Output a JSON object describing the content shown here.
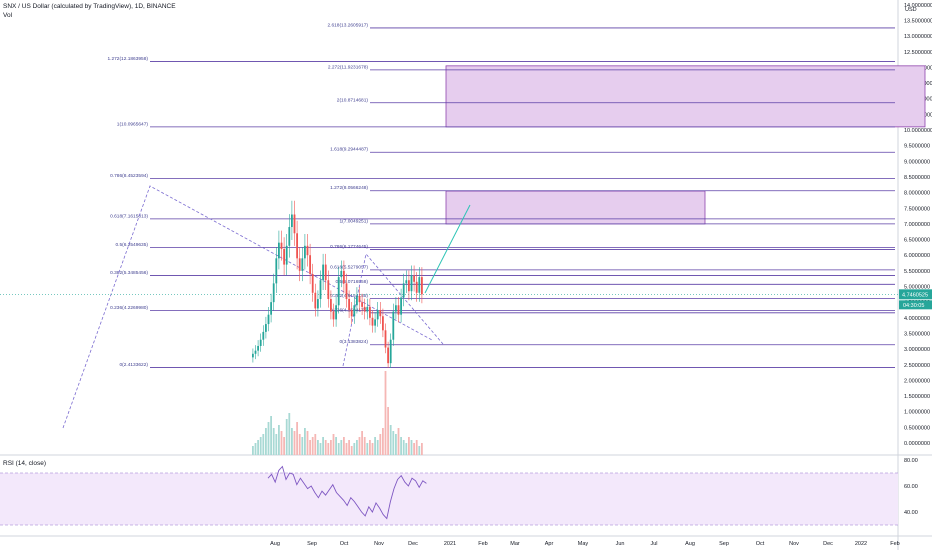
{
  "header": {
    "title": "SNX / US Dollar (calculated by TradingView), 1D, BINANCE",
    "volume_label": "Vol"
  },
  "currency": "USD",
  "rsi": {
    "label": "RSI (14, close)",
    "ticks": [
      "80.00",
      "60.00",
      "40.00"
    ]
  },
  "price_badges": {
    "last_price": "4.7460525",
    "countdown": "04:30:05"
  },
  "chart_data": {
    "type": "candlestick",
    "price_axis_ticks": [
      "14.0000000",
      "13.5000000",
      "13.0000000",
      "12.5000000",
      "12.0000000",
      "11.5000000",
      "11.0000000",
      "10.5000000",
      "10.0000000",
      "9.5000000",
      "9.0000000",
      "8.5000000",
      "8.0000000",
      "7.5000000",
      "7.0000000",
      "6.5000000",
      "6.0000000",
      "5.5000000",
      "5.0000000",
      "4.5000000",
      "4.0000000",
      "3.5000000",
      "3.0000000",
      "2.5000000",
      "2.0000000",
      "1.5000000",
      "1.0000000",
      "0.5000000",
      "0.0000000"
    ],
    "time_axis_ticks": [
      "Aug",
      "Sep",
      "Oct",
      "Nov",
      "Dec",
      "2021",
      "Feb",
      "Mar",
      "Apr",
      "May",
      "Jun",
      "Jul",
      "Aug",
      "Sep",
      "Oct",
      "Nov",
      "Dec",
      "2022",
      "Feb"
    ],
    "fib_levels": [
      {
        "label": "2.618(13.2605917)",
        "price": 13.26
      },
      {
        "label": "1.272(12.1863958)",
        "price": 12.19
      },
      {
        "label": "2.272(11.9231678)",
        "price": 11.92
      },
      {
        "label": "2(10.8714681)",
        "price": 10.87
      },
      {
        "label": "1(10.0965647)",
        "price": 10.1
      },
      {
        "label": "1.618(9.2944487)",
        "price": 9.29
      },
      {
        "label": "0.786(8.4523594)",
        "price": 8.45
      },
      {
        "label": "1.272(8.0566248)",
        "price": 8.06
      },
      {
        "label": "0.618(7.1615813)",
        "price": 7.16
      },
      {
        "label": "1(7.0049251)",
        "price": 7.0
      },
      {
        "label": "0.786(6.1774645)",
        "price": 6.18
      },
      {
        "label": "0.5(6.2549635)",
        "price": 6.25
      },
      {
        "label": "0.618(5.5279057)",
        "price": 5.53
      },
      {
        "label": "0.382(5.3485456)",
        "price": 5.35
      },
      {
        "label": "0.5(5.0716558)",
        "price": 5.07
      },
      {
        "label": "0.382(4.6154155)",
        "price": 4.62
      },
      {
        "label": "0.236(4.2269980)",
        "price": 4.23
      },
      {
        "label": "0.236(4.1594175)",
        "price": 4.16
      },
      {
        "label": "0(3.1383824)",
        "price": 3.14
      },
      {
        "label": "0(2.4133622)",
        "price": 2.41
      }
    ],
    "close_series": [
      2.85,
      2.95,
      3.1,
      3.3,
      3.55,
      3.8,
      4.1,
      4.5,
      5.1,
      5.9,
      6.4,
      6.2,
      5.7,
      6.3,
      6.9,
      7.3,
      6.7,
      5.9,
      5.5,
      5.9,
      6.3,
      6.0,
      5.4,
      4.8,
      4.3,
      4.6,
      5.2,
      5.7,
      5.2,
      4.6,
      4.2,
      3.95,
      4.4,
      5.3,
      5.5,
      5.1,
      4.6,
      4.25,
      4.05,
      4.4,
      4.7,
      4.5,
      4.35,
      4.2,
      4.35,
      4.0,
      3.75,
      3.95,
      4.25,
      4.05,
      3.6,
      3.05,
      2.55,
      3.3,
      4.2,
      4.4,
      4.1,
      4.65,
      5.1,
      5.2,
      4.85,
      5.35,
      5.15,
      4.8,
      5.3,
      4.75
    ],
    "rsi_values": [
      66,
      69,
      63,
      72,
      75,
      65,
      70,
      69,
      61,
      66,
      62,
      58,
      60,
      55,
      51,
      56,
      53,
      57,
      61,
      55,
      52,
      49,
      45,
      51,
      48,
      44,
      40,
      37,
      44,
      40,
      47,
      43,
      38,
      35,
      48,
      58,
      65,
      68,
      63,
      60,
      66,
      64,
      59,
      64,
      62
    ],
    "volume_values": [
      0.3,
      0.4,
      0.5,
      0.6,
      0.7,
      0.9,
      1.1,
      1.3,
      0.9,
      0.7,
      1.0,
      0.8,
      0.6,
      1.2,
      1.4,
      0.9,
      0.8,
      1.1,
      0.7,
      0.6,
      0.9,
      0.8,
      0.5,
      0.6,
      0.7,
      0.5,
      0.4,
      0.6,
      0.5,
      0.4,
      0.5,
      0.7,
      0.6,
      0.4,
      0.5,
      0.6,
      0.4,
      0.5,
      0.3,
      0.4,
      0.5,
      0.6,
      0.8,
      0.6,
      0.4,
      0.5,
      0.4,
      0.6,
      0.5,
      0.7,
      0.9,
      2.8,
      1.6,
      1.0,
      0.8,
      0.7,
      0.9,
      0.6,
      0.5,
      0.4,
      0.6,
      0.5,
      0.4,
      0.5,
      0.3,
      0.4
    ],
    "colors": {
      "up": "#26a69a",
      "down": "#ef5350",
      "fib_line": "#5b3fa6",
      "trend_dash": "#7a6bd0",
      "projection": "#2ec4b6",
      "box_fill": "#e6cdee",
      "rsi_line": "#7e57c2",
      "rsi_band": "#f3e8fb"
    }
  }
}
